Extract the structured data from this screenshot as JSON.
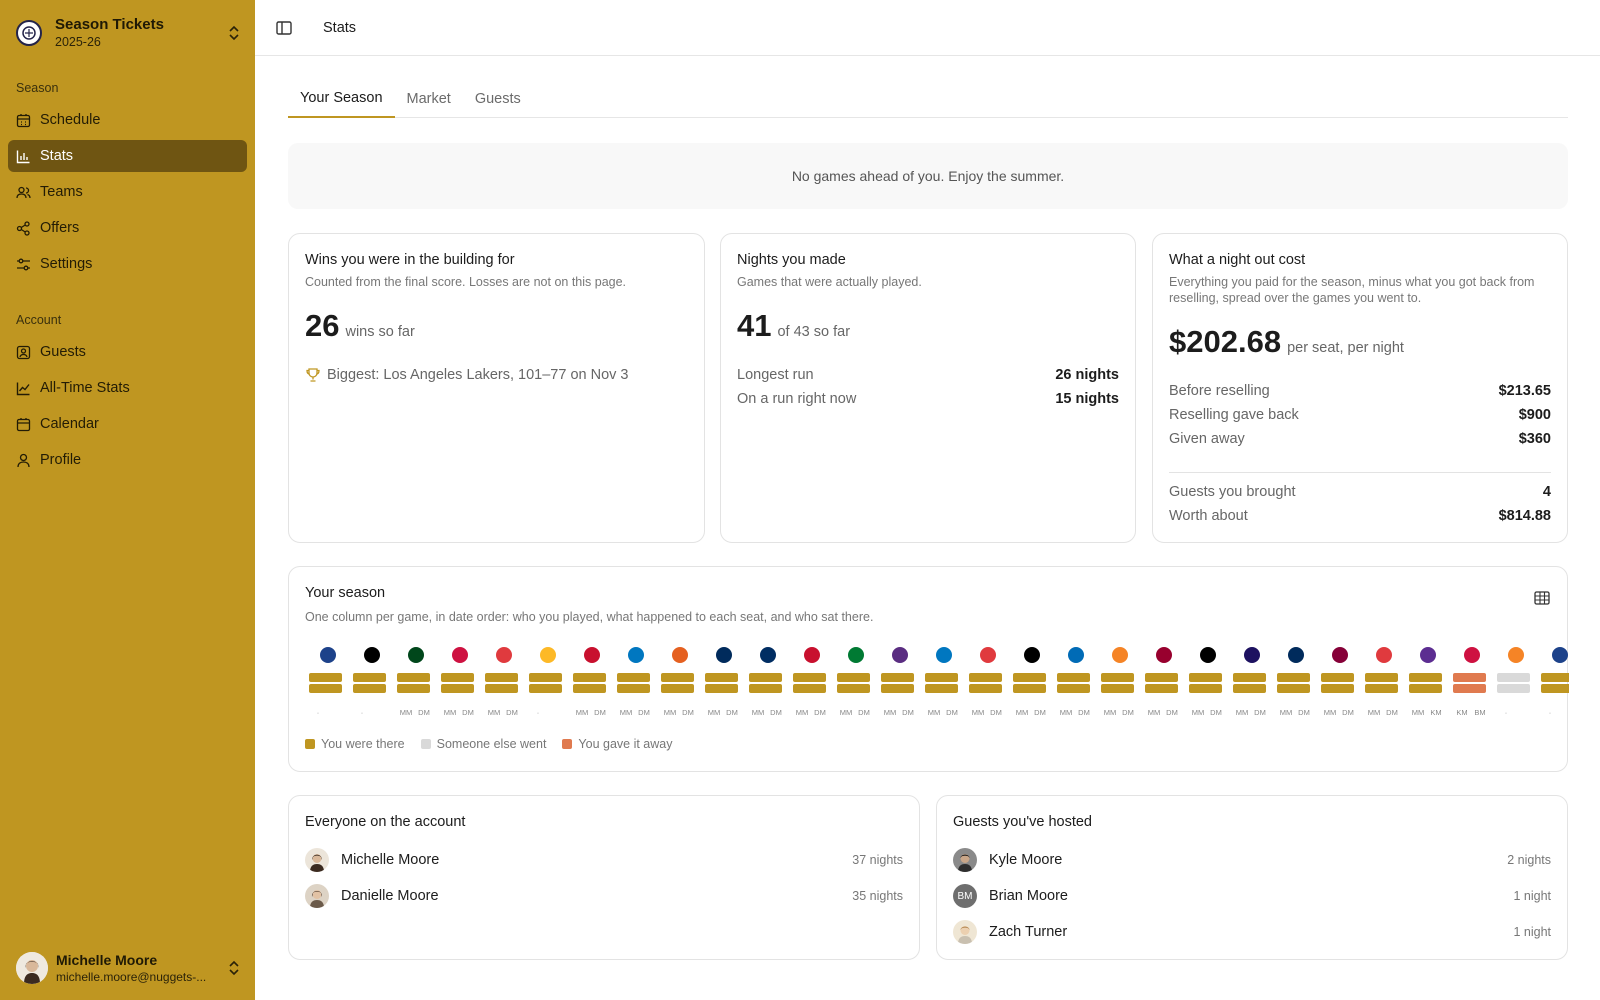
{
  "sidebar": {
    "team_name": "Season Tickets",
    "team_season": "2025-26",
    "section_season": "Season",
    "section_account": "Account",
    "season_items": [
      {
        "label": "Schedule",
        "icon": "calendar-grid-icon"
      },
      {
        "label": "Stats",
        "icon": "bar-chart-icon",
        "active": true
      },
      {
        "label": "Teams",
        "icon": "users-icon"
      },
      {
        "label": "Offers",
        "icon": "share-icon"
      },
      {
        "label": "Settings",
        "icon": "sliders-icon"
      }
    ],
    "account_items": [
      {
        "label": "Guests",
        "icon": "contact-icon"
      },
      {
        "label": "All-Time Stats",
        "icon": "line-chart-icon"
      },
      {
        "label": "Calendar",
        "icon": "calendar-icon"
      },
      {
        "label": "Profile",
        "icon": "user-icon"
      }
    ],
    "user": {
      "name": "Michelle Moore",
      "email": "michelle.moore@nuggets-..."
    }
  },
  "header": {
    "title": "Stats"
  },
  "tabs": [
    "Your Season",
    "Market",
    "Guests"
  ],
  "notice": "No games ahead of you. Enjoy the summer.",
  "wins": {
    "title": "Wins you were in the building for",
    "subtitle": "Counted from the final score. Losses are not on this page.",
    "value": "26",
    "suffix": "wins so far",
    "biggest": "Biggest: Los Angeles Lakers, 101–77 on Nov 3"
  },
  "nights": {
    "title": "Nights you made",
    "subtitle": "Games that were actually played.",
    "value": "41",
    "suffix": "of 43 so far",
    "rows": [
      {
        "label": "Longest run",
        "value": "26 nights"
      },
      {
        "label": "On a run right now",
        "value": "15 nights"
      }
    ]
  },
  "cost": {
    "title": "What a night out cost",
    "subtitle": "Everything you paid for the season, minus what you got back from reselling, spread over the games you went to.",
    "value": "$202.68",
    "suffix": "per seat, per night",
    "rows": [
      {
        "label": "Before reselling",
        "value": "$213.65"
      },
      {
        "label": "Reselling gave back",
        "value": "$900"
      },
      {
        "label": "Given away",
        "value": "$360"
      }
    ],
    "rows2": [
      {
        "label": "Guests you brought",
        "value": "4"
      },
      {
        "label": "Worth about",
        "value": "$814.88"
      }
    ]
  },
  "season": {
    "title": "Your season",
    "subtitle": "One column per game, in date order: who you played, what happened to each seat, and who sat there.",
    "legend": [
      {
        "label": "You were there",
        "color": "#bf9621"
      },
      {
        "label": "Someone else went",
        "color": "#d9d9d9"
      },
      {
        "label": "You gave it away",
        "color": "#e07a4f"
      }
    ],
    "games": [
      {
        "logo": "#1d428a",
        "seats": [
          "there",
          "there"
        ],
        "initials": [
          "·",
          ""
        ]
      },
      {
        "logo": "#000000",
        "seats": [
          "there",
          "there"
        ],
        "initials": [
          "·",
          ""
        ]
      },
      {
        "logo": "#00471b",
        "seats": [
          "there",
          "there"
        ],
        "initials": [
          "MM",
          "DM"
        ]
      },
      {
        "logo": "#ce1141",
        "seats": [
          "there",
          "there"
        ],
        "initials": [
          "MM",
          "DM"
        ]
      },
      {
        "logo": "#e03a3e",
        "seats": [
          "there",
          "there"
        ],
        "initials": [
          "MM",
          "DM"
        ]
      },
      {
        "logo": "#fdb927",
        "seats": [
          "there",
          "there"
        ],
        "initials": [
          "·",
          ""
        ]
      },
      {
        "logo": "#c8102e",
        "seats": [
          "there",
          "there"
        ],
        "initials": [
          "MM",
          "DM"
        ]
      },
      {
        "logo": "#0077c0",
        "seats": [
          "there",
          "there"
        ],
        "initials": [
          "MM",
          "DM"
        ]
      },
      {
        "logo": "#e56020",
        "seats": [
          "there",
          "there"
        ],
        "initials": [
          "MM",
          "DM"
        ]
      },
      {
        "logo": "#002b5c",
        "seats": [
          "there",
          "there"
        ],
        "initials": [
          "MM",
          "DM"
        ]
      },
      {
        "logo": "#002d62",
        "seats": [
          "there",
          "there"
        ],
        "initials": [
          "MM",
          "DM"
        ]
      },
      {
        "logo": "#c8102e",
        "seats": [
          "there",
          "there"
        ],
        "initials": [
          "MM",
          "DM"
        ]
      },
      {
        "logo": "#007a33",
        "seats": [
          "there",
          "there"
        ],
        "initials": [
          "MM",
          "DM"
        ]
      },
      {
        "logo": "#5a2d81",
        "seats": [
          "there",
          "there"
        ],
        "initials": [
          "MM",
          "DM"
        ]
      },
      {
        "logo": "#0077c0",
        "seats": [
          "there",
          "there"
        ],
        "initials": [
          "MM",
          "DM"
        ]
      },
      {
        "logo": "#e03a3e",
        "seats": [
          "there",
          "there"
        ],
        "initials": [
          "MM",
          "DM"
        ]
      },
      {
        "logo": "#000000",
        "seats": [
          "there",
          "there"
        ],
        "initials": [
          "MM",
          "DM"
        ]
      },
      {
        "logo": "#006bb6",
        "seats": [
          "there",
          "there"
        ],
        "initials": [
          "MM",
          "DM"
        ]
      },
      {
        "logo": "#f58426",
        "seats": [
          "there",
          "there"
        ],
        "initials": [
          "MM",
          "DM"
        ]
      },
      {
        "logo": "#98002e",
        "seats": [
          "there",
          "there"
        ],
        "initials": [
          "MM",
          "DM"
        ]
      },
      {
        "logo": "#000000",
        "seats": [
          "there",
          "there"
        ],
        "initials": [
          "MM",
          "DM"
        ]
      },
      {
        "logo": "#1d1160",
        "seats": [
          "there",
          "there"
        ],
        "initials": [
          "MM",
          "DM"
        ]
      },
      {
        "logo": "#002b5c",
        "seats": [
          "there",
          "there"
        ],
        "initials": [
          "MM",
          "DM"
        ]
      },
      {
        "logo": "#860038",
        "seats": [
          "there",
          "there"
        ],
        "initials": [
          "MM",
          "DM"
        ]
      },
      {
        "logo": "#e03a3e",
        "seats": [
          "there",
          "there"
        ],
        "initials": [
          "MM",
          "DM"
        ]
      },
      {
        "logo": "#5c2d91",
        "seats": [
          "there",
          "there"
        ],
        "initials": [
          "MM",
          "KM"
        ]
      },
      {
        "logo": "#ce1141",
        "seats": [
          "away",
          "away"
        ],
        "initials": [
          "KM",
          "BM"
        ]
      },
      {
        "logo": "#f58426",
        "seats": [
          "else",
          "else"
        ],
        "initials": [
          "·",
          ""
        ]
      },
      {
        "logo": "#1d428a",
        "seats": [
          "there",
          "there"
        ],
        "initials": [
          "·",
          ""
        ]
      }
    ]
  },
  "account_people": {
    "title": "Everyone on the account",
    "people": [
      {
        "name": "Michelle Moore",
        "nights": "37 nights",
        "avatar": "#e8e1d5",
        "initials": ""
      },
      {
        "name": "Danielle Moore",
        "nights": "35 nights",
        "avatar": "#d8cfc2",
        "initials": ""
      }
    ]
  },
  "guests_hosted": {
    "title": "Guests you've hosted",
    "people": [
      {
        "name": "Kyle Moore",
        "nights": "2 nights",
        "avatar": "#7a7a7a",
        "initials": ""
      },
      {
        "name": "Brian Moore",
        "nights": "1 night",
        "avatar": "#6e6e6e",
        "initials": "BM"
      },
      {
        "name": "Zach Turner",
        "nights": "1 night",
        "avatar": "#e3d4ba",
        "initials": ""
      }
    ]
  }
}
